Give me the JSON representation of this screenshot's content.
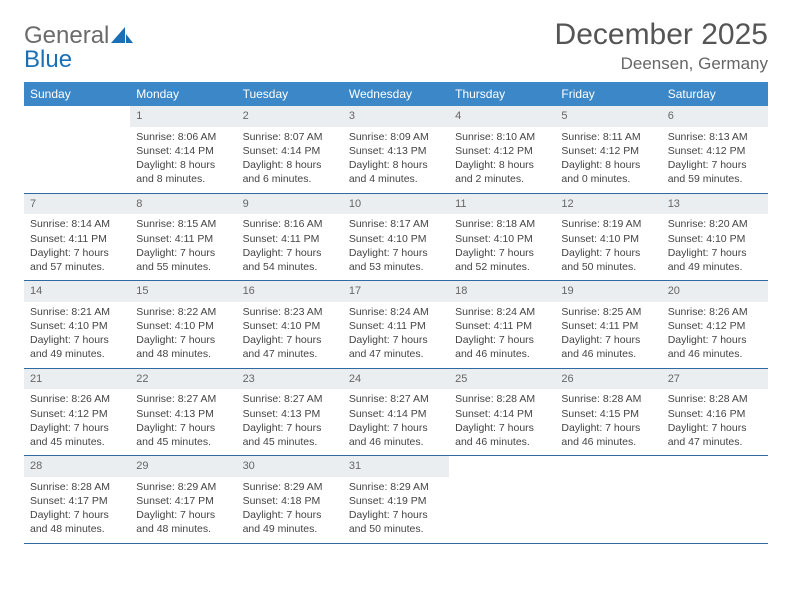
{
  "logo": {
    "word1": "General",
    "word2": "Blue"
  },
  "title": "December 2025",
  "location": "Deensen, Germany",
  "colors": {
    "header_bg": "#3b87c8",
    "header_text": "#ffffff",
    "daynum_bg": "#ebeef1",
    "border": "#2f6aa0",
    "logo_gray": "#6b6b6b",
    "logo_blue": "#1a6fb5"
  },
  "day_headers": [
    "Sunday",
    "Monday",
    "Tuesday",
    "Wednesday",
    "Thursday",
    "Friday",
    "Saturday"
  ],
  "weeks": [
    [
      {
        "n": "",
        "sr": "",
        "ss": "",
        "dl": ""
      },
      {
        "n": "1",
        "sr": "Sunrise: 8:06 AM",
        "ss": "Sunset: 4:14 PM",
        "dl": "Daylight: 8 hours and 8 minutes."
      },
      {
        "n": "2",
        "sr": "Sunrise: 8:07 AM",
        "ss": "Sunset: 4:14 PM",
        "dl": "Daylight: 8 hours and 6 minutes."
      },
      {
        "n": "3",
        "sr": "Sunrise: 8:09 AM",
        "ss": "Sunset: 4:13 PM",
        "dl": "Daylight: 8 hours and 4 minutes."
      },
      {
        "n": "4",
        "sr": "Sunrise: 8:10 AM",
        "ss": "Sunset: 4:12 PM",
        "dl": "Daylight: 8 hours and 2 minutes."
      },
      {
        "n": "5",
        "sr": "Sunrise: 8:11 AM",
        "ss": "Sunset: 4:12 PM",
        "dl": "Daylight: 8 hours and 0 minutes."
      },
      {
        "n": "6",
        "sr": "Sunrise: 8:13 AM",
        "ss": "Sunset: 4:12 PM",
        "dl": "Daylight: 7 hours and 59 minutes."
      }
    ],
    [
      {
        "n": "7",
        "sr": "Sunrise: 8:14 AM",
        "ss": "Sunset: 4:11 PM",
        "dl": "Daylight: 7 hours and 57 minutes."
      },
      {
        "n": "8",
        "sr": "Sunrise: 8:15 AM",
        "ss": "Sunset: 4:11 PM",
        "dl": "Daylight: 7 hours and 55 minutes."
      },
      {
        "n": "9",
        "sr": "Sunrise: 8:16 AM",
        "ss": "Sunset: 4:11 PM",
        "dl": "Daylight: 7 hours and 54 minutes."
      },
      {
        "n": "10",
        "sr": "Sunrise: 8:17 AM",
        "ss": "Sunset: 4:10 PM",
        "dl": "Daylight: 7 hours and 53 minutes."
      },
      {
        "n": "11",
        "sr": "Sunrise: 8:18 AM",
        "ss": "Sunset: 4:10 PM",
        "dl": "Daylight: 7 hours and 52 minutes."
      },
      {
        "n": "12",
        "sr": "Sunrise: 8:19 AM",
        "ss": "Sunset: 4:10 PM",
        "dl": "Daylight: 7 hours and 50 minutes."
      },
      {
        "n": "13",
        "sr": "Sunrise: 8:20 AM",
        "ss": "Sunset: 4:10 PM",
        "dl": "Daylight: 7 hours and 49 minutes."
      }
    ],
    [
      {
        "n": "14",
        "sr": "Sunrise: 8:21 AM",
        "ss": "Sunset: 4:10 PM",
        "dl": "Daylight: 7 hours and 49 minutes."
      },
      {
        "n": "15",
        "sr": "Sunrise: 8:22 AM",
        "ss": "Sunset: 4:10 PM",
        "dl": "Daylight: 7 hours and 48 minutes."
      },
      {
        "n": "16",
        "sr": "Sunrise: 8:23 AM",
        "ss": "Sunset: 4:10 PM",
        "dl": "Daylight: 7 hours and 47 minutes."
      },
      {
        "n": "17",
        "sr": "Sunrise: 8:24 AM",
        "ss": "Sunset: 4:11 PM",
        "dl": "Daylight: 7 hours and 47 minutes."
      },
      {
        "n": "18",
        "sr": "Sunrise: 8:24 AM",
        "ss": "Sunset: 4:11 PM",
        "dl": "Daylight: 7 hours and 46 minutes."
      },
      {
        "n": "19",
        "sr": "Sunrise: 8:25 AM",
        "ss": "Sunset: 4:11 PM",
        "dl": "Daylight: 7 hours and 46 minutes."
      },
      {
        "n": "20",
        "sr": "Sunrise: 8:26 AM",
        "ss": "Sunset: 4:12 PM",
        "dl": "Daylight: 7 hours and 46 minutes."
      }
    ],
    [
      {
        "n": "21",
        "sr": "Sunrise: 8:26 AM",
        "ss": "Sunset: 4:12 PM",
        "dl": "Daylight: 7 hours and 45 minutes."
      },
      {
        "n": "22",
        "sr": "Sunrise: 8:27 AM",
        "ss": "Sunset: 4:13 PM",
        "dl": "Daylight: 7 hours and 45 minutes."
      },
      {
        "n": "23",
        "sr": "Sunrise: 8:27 AM",
        "ss": "Sunset: 4:13 PM",
        "dl": "Daylight: 7 hours and 45 minutes."
      },
      {
        "n": "24",
        "sr": "Sunrise: 8:27 AM",
        "ss": "Sunset: 4:14 PM",
        "dl": "Daylight: 7 hours and 46 minutes."
      },
      {
        "n": "25",
        "sr": "Sunrise: 8:28 AM",
        "ss": "Sunset: 4:14 PM",
        "dl": "Daylight: 7 hours and 46 minutes."
      },
      {
        "n": "26",
        "sr": "Sunrise: 8:28 AM",
        "ss": "Sunset: 4:15 PM",
        "dl": "Daylight: 7 hours and 46 minutes."
      },
      {
        "n": "27",
        "sr": "Sunrise: 8:28 AM",
        "ss": "Sunset: 4:16 PM",
        "dl": "Daylight: 7 hours and 47 minutes."
      }
    ],
    [
      {
        "n": "28",
        "sr": "Sunrise: 8:28 AM",
        "ss": "Sunset: 4:17 PM",
        "dl": "Daylight: 7 hours and 48 minutes."
      },
      {
        "n": "29",
        "sr": "Sunrise: 8:29 AM",
        "ss": "Sunset: 4:17 PM",
        "dl": "Daylight: 7 hours and 48 minutes."
      },
      {
        "n": "30",
        "sr": "Sunrise: 8:29 AM",
        "ss": "Sunset: 4:18 PM",
        "dl": "Daylight: 7 hours and 49 minutes."
      },
      {
        "n": "31",
        "sr": "Sunrise: 8:29 AM",
        "ss": "Sunset: 4:19 PM",
        "dl": "Daylight: 7 hours and 50 minutes."
      },
      {
        "n": "",
        "sr": "",
        "ss": "",
        "dl": ""
      },
      {
        "n": "",
        "sr": "",
        "ss": "",
        "dl": ""
      },
      {
        "n": "",
        "sr": "",
        "ss": "",
        "dl": ""
      }
    ]
  ]
}
